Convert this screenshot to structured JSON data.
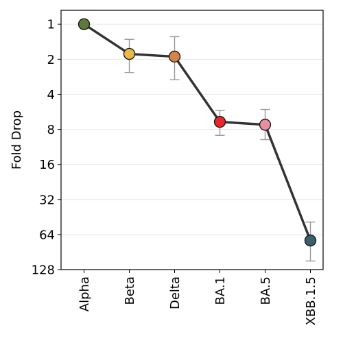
{
  "chart_data": {
    "type": "line",
    "title": "",
    "xlabel": "",
    "ylabel": "Fold Drop",
    "y_scale": "log2",
    "y_inverted": true,
    "ylim": [
      128,
      0.76
    ],
    "yticks": [
      "1",
      "2",
      "4",
      "8",
      "16",
      "32",
      "64",
      "128"
    ],
    "y_tick_values": [
      1,
      2,
      4,
      8,
      16,
      32,
      64,
      128
    ],
    "grid": "horizontal",
    "categories": [
      "Alpha",
      "Beta",
      "Delta",
      "BA.1",
      "BA.5",
      "XBB.1.5"
    ],
    "series": [
      {
        "values": [
          1.0,
          1.8,
          1.9,
          6.9,
          7.3,
          72
        ],
        "error_low": [
          null,
          1.35,
          1.28,
          5.5,
          5.4,
          50
        ],
        "error_high": [
          null,
          2.6,
          3.0,
          9.0,
          9.8,
          108
        ],
        "line_color": "#333333",
        "marker_colors": [
          "#5d7a3a",
          "#e8b94a",
          "#d4834a",
          "#e8282c",
          "#e88ea0",
          "#3d5f6a"
        ],
        "error_color": "#999999"
      }
    ]
  }
}
